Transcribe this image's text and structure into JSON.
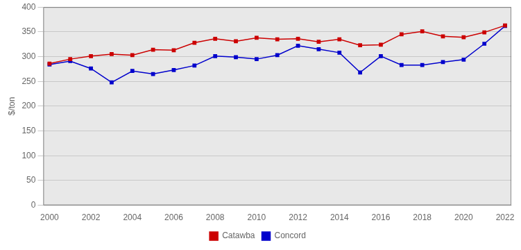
{
  "chart_data": {
    "type": "line",
    "x": [
      2000,
      2001,
      2002,
      2003,
      2004,
      2005,
      2006,
      2007,
      2008,
      2009,
      2010,
      2011,
      2012,
      2013,
      2014,
      2015,
      2016,
      2017,
      2018,
      2019,
      2020,
      2021,
      2022
    ],
    "series": [
      {
        "name": "Catawba",
        "color": "#cc0000",
        "marker": "square",
        "values": [
          286,
          295,
          301,
          305,
          303,
          314,
          313,
          328,
          336,
          331,
          338,
          335,
          336,
          330,
          335,
          323,
          324,
          345,
          351,
          341,
          339,
          349,
          363
        ]
      },
      {
        "name": "Concord",
        "color": "#0000cc",
        "marker": "square",
        "values": [
          284,
          291,
          276,
          248,
          271,
          265,
          273,
          282,
          301,
          299,
          295,
          303,
          322,
          315,
          308,
          268,
          301,
          283,
          283,
          289,
          294,
          326,
          362
        ]
      }
    ],
    "y_label": "$/ton",
    "xlim": [
      1999.7,
      2022.3
    ],
    "xticks": [
      2000,
      2002,
      2004,
      2006,
      2008,
      2010,
      2012,
      2014,
      2016,
      2018,
      2020,
      2022
    ],
    "ylim": [
      0,
      400
    ],
    "yticks": [
      0,
      50,
      100,
      150,
      200,
      250,
      300,
      350,
      400
    ],
    "grid": "y",
    "legend": "bottom"
  }
}
